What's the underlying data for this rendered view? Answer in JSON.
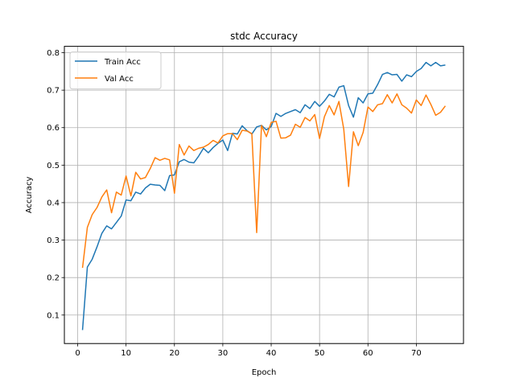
{
  "chart_data": {
    "type": "line",
    "title": "stdc Accuracy",
    "xlabel": "Epoch",
    "ylabel": "Accuracy",
    "xlim": [
      -2.75,
      79.75
    ],
    "ylim": [
      0.024,
      0.817
    ],
    "xticks": [
      0,
      10,
      20,
      30,
      40,
      50,
      60,
      70
    ],
    "yticks": [
      0.1,
      0.2,
      0.3,
      0.4,
      0.5,
      0.6,
      0.7,
      0.8
    ],
    "grid": true,
    "legend_position": "top-left",
    "x": [
      1,
      2,
      3,
      4,
      5,
      6,
      7,
      8,
      9,
      10,
      11,
      12,
      13,
      14,
      15,
      16,
      17,
      18,
      19,
      20,
      21,
      22,
      23,
      24,
      25,
      26,
      27,
      28,
      29,
      30,
      31,
      32,
      33,
      34,
      35,
      36,
      37,
      38,
      39,
      40,
      41,
      42,
      43,
      44,
      45,
      46,
      47,
      48,
      49,
      50,
      51,
      52,
      53,
      54,
      55,
      56,
      57,
      58,
      59,
      60,
      61,
      62,
      63,
      64,
      65,
      66,
      67,
      68,
      69,
      70,
      71,
      72,
      73,
      74,
      75,
      76
    ],
    "series": [
      {
        "name": "Train Acc",
        "color": "#1f77b4",
        "values": [
          0.06,
          0.228,
          0.249,
          0.282,
          0.318,
          0.338,
          0.33,
          0.347,
          0.364,
          0.407,
          0.405,
          0.428,
          0.423,
          0.439,
          0.449,
          0.447,
          0.446,
          0.432,
          0.472,
          0.474,
          0.509,
          0.515,
          0.508,
          0.506,
          0.524,
          0.545,
          0.533,
          0.547,
          0.558,
          0.567,
          0.539,
          0.585,
          0.583,
          0.605,
          0.592,
          0.583,
          0.602,
          0.606,
          0.594,
          0.603,
          0.638,
          0.63,
          0.638,
          0.643,
          0.648,
          0.64,
          0.661,
          0.651,
          0.67,
          0.657,
          0.671,
          0.689,
          0.682,
          0.708,
          0.712,
          0.659,
          0.628,
          0.68,
          0.666,
          0.69,
          0.692,
          0.715,
          0.742,
          0.747,
          0.741,
          0.742,
          0.724,
          0.741,
          0.736,
          0.75,
          0.758,
          0.774,
          0.765,
          0.774,
          0.765,
          0.767
        ]
      },
      {
        "name": "Val Acc",
        "color": "#ff7f0e",
        "values": [
          0.226,
          0.334,
          0.368,
          0.387,
          0.415,
          0.434,
          0.373,
          0.428,
          0.42,
          0.471,
          0.418,
          0.481,
          0.463,
          0.467,
          0.491,
          0.52,
          0.513,
          0.518,
          0.514,
          0.425,
          0.555,
          0.527,
          0.551,
          0.539,
          0.545,
          0.548,
          0.555,
          0.566,
          0.559,
          0.578,
          0.584,
          0.584,
          0.568,
          0.593,
          0.591,
          0.584,
          0.32,
          0.606,
          0.576,
          0.614,
          0.617,
          0.572,
          0.573,
          0.58,
          0.609,
          0.601,
          0.627,
          0.618,
          0.635,
          0.571,
          0.629,
          0.659,
          0.634,
          0.67,
          0.596,
          0.443,
          0.589,
          0.552,
          0.587,
          0.655,
          0.643,
          0.661,
          0.664,
          0.688,
          0.666,
          0.69,
          0.661,
          0.652,
          0.639,
          0.674,
          0.659,
          0.687,
          0.662,
          0.633,
          0.641,
          0.658
        ]
      }
    ]
  }
}
